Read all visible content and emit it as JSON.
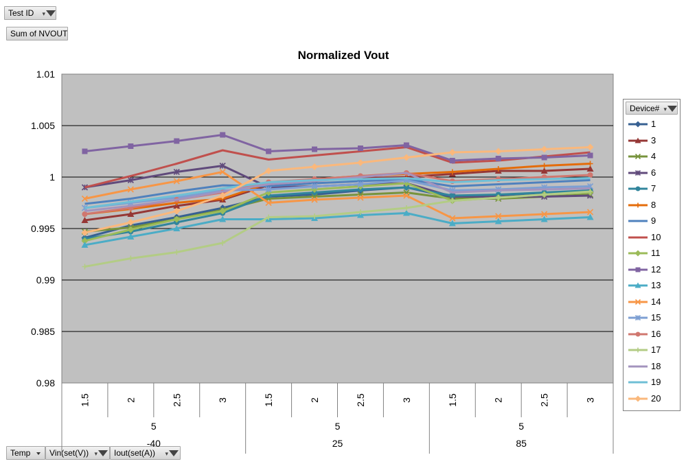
{
  "pivot": {
    "report_filter_label": "Test ID",
    "values_label": "Sum of NVOUT",
    "axis_fields": [
      "Temp",
      "Vin(set(V))",
      "Iout(set(A))"
    ]
  },
  "legend": {
    "field_label": "Device#"
  },
  "chart_data": {
    "type": "line",
    "title": "Normalized Vout",
    "xlabel": "",
    "ylabel": "",
    "ylim": [
      0.98,
      1.01
    ],
    "yticks": [
      "0.98",
      "0.985",
      "0.99",
      "0.995",
      "1",
      "1.005",
      "1.01"
    ],
    "grid": true,
    "plot_background": "#c0c0c0",
    "legend_position": "right",
    "categories": [
      "1.5",
      "2",
      "2.5",
      "3",
      "1.5",
      "2",
      "2.5",
      "3",
      "1.5",
      "2",
      "2.5",
      "3"
    ],
    "category_groups": [
      {
        "vin": "5",
        "temp": "-40"
      },
      {
        "vin": "5",
        "temp": "25"
      },
      {
        "vin": "5",
        "temp": "85"
      }
    ],
    "series": [
      {
        "name": "1",
        "color": "#376092",
        "marker": "diamond",
        "values": [
          0.9941,
          0.9953,
          0.9961,
          0.997,
          0.9981,
          0.9983,
          0.9987,
          0.999,
          0.998,
          0.9982,
          0.9984,
          0.9986
        ]
      },
      {
        "name": "3",
        "color": "#953735",
        "marker": "triangle",
        "values": [
          0.9958,
          0.9964,
          0.9972,
          0.9978,
          0.9992,
          0.9997,
          0.9999,
          1.0,
          1.0003,
          1.0006,
          1.0006,
          1.0008
        ]
      },
      {
        "name": "4",
        "color": "#77933c",
        "marker": "x",
        "values": [
          0.9947,
          0.9951,
          0.9959,
          0.9968,
          0.9979,
          0.9981,
          0.9983,
          0.9985,
          0.9979,
          0.9979,
          0.9981,
          0.9983
        ]
      },
      {
        "name": "6",
        "color": "#604a7b",
        "marker": "star",
        "values": [
          0.999,
          0.9997,
          1.0005,
          1.0011,
          0.999,
          0.9991,
          0.9993,
          0.9994,
          0.9981,
          0.9981,
          0.9981,
          0.9982
        ]
      },
      {
        "name": "7",
        "color": "#31859c",
        "marker": "circle",
        "values": [
          0.994,
          0.9947,
          0.9956,
          0.9965,
          0.9982,
          0.9985,
          0.9988,
          0.999,
          0.9982,
          0.9983,
          0.9985,
          0.9987
        ]
      },
      {
        "name": "8",
        "color": "#e46c0a",
        "marker": "plus",
        "values": [
          0.9964,
          0.9969,
          0.9975,
          0.9979,
          0.9994,
          0.9998,
          1.0001,
          1.0003,
          1.0005,
          1.0008,
          1.0011,
          1.0013
        ]
      },
      {
        "name": "9",
        "color": "#4f81bd",
        "marker": "none",
        "values": [
          0.9974,
          0.9979,
          0.9986,
          0.9992,
          0.9991,
          0.9994,
          0.9996,
          0.9998,
          0.9991,
          0.9993,
          0.9995,
          0.9997
        ]
      },
      {
        "name": "10",
        "color": "#c0504d",
        "marker": "none",
        "values": [
          0.999,
          1.0001,
          1.0013,
          1.0026,
          1.0017,
          1.0021,
          1.0025,
          1.0029,
          1.0014,
          1.0016,
          1.002,
          1.0024
        ]
      },
      {
        "name": "11",
        "color": "#9bbb59",
        "marker": "diamond",
        "values": [
          0.9938,
          0.9949,
          0.9959,
          0.9967,
          0.9985,
          0.9988,
          0.9991,
          0.9994,
          0.9977,
          0.998,
          0.9983,
          0.9985
        ]
      },
      {
        "name": "12",
        "color": "#8064a2",
        "marker": "square",
        "values": [
          1.0025,
          1.003,
          1.0035,
          1.0041,
          1.0025,
          1.0027,
          1.0028,
          1.0031,
          1.0016,
          1.0018,
          1.0019,
          1.0021
        ]
      },
      {
        "name": "13",
        "color": "#4bacc6",
        "marker": "triangle",
        "values": [
          0.9934,
          0.9942,
          0.995,
          0.9959,
          0.9959,
          0.996,
          0.9963,
          0.9965,
          0.9955,
          0.9957,
          0.9959,
          0.9961
        ]
      },
      {
        "name": "14",
        "color": "#f79646",
        "marker": "x",
        "values": [
          0.9979,
          0.9988,
          0.9996,
          1.0005,
          0.9975,
          0.9978,
          0.998,
          0.9982,
          0.996,
          0.9962,
          0.9964,
          0.9966
        ]
      },
      {
        "name": "15",
        "color": "#7d9fd3",
        "marker": "star",
        "values": [
          0.997,
          0.9975,
          0.998,
          0.9987,
          0.9988,
          0.9991,
          0.9993,
          0.9997,
          0.9987,
          0.9988,
          0.999,
          0.9991
        ]
      },
      {
        "name": "16",
        "color": "#d0776f",
        "marker": "circle",
        "values": [
          0.9964,
          0.997,
          0.9978,
          0.9985,
          0.9995,
          0.9998,
          1.0001,
          1.0004,
          0.9996,
          0.9998,
          1.0,
          1.0002
        ]
      },
      {
        "name": "17",
        "color": "#b3cc85",
        "marker": "plus",
        "values": [
          0.9913,
          0.9921,
          0.9927,
          0.9936,
          0.9961,
          0.9962,
          0.9966,
          0.997,
          0.9977,
          0.998,
          0.9983,
          0.9986
        ]
      },
      {
        "name": "18",
        "color": "#a393bd",
        "marker": "none",
        "values": [
          0.9967,
          0.9972,
          0.9978,
          0.9986,
          0.9993,
          0.9996,
          1.0,
          1.0004,
          0.9985,
          0.9987,
          0.9988,
          0.9989
        ]
      },
      {
        "name": "19",
        "color": "#6fbfd6",
        "marker": "none",
        "values": [
          0.997,
          0.9976,
          0.9982,
          0.9989,
          0.9995,
          0.9997,
          0.9998,
          0.9999,
          0.9995,
          0.9997,
          0.9998,
          0.9999
        ]
      },
      {
        "name": "20",
        "color": "#fab87c",
        "marker": "diamond",
        "values": [
          0.9946,
          0.9956,
          0.9967,
          0.9982,
          1.0006,
          1.001,
          1.0014,
          1.0019,
          1.0024,
          1.0025,
          1.0027,
          1.0029
        ]
      }
    ]
  }
}
